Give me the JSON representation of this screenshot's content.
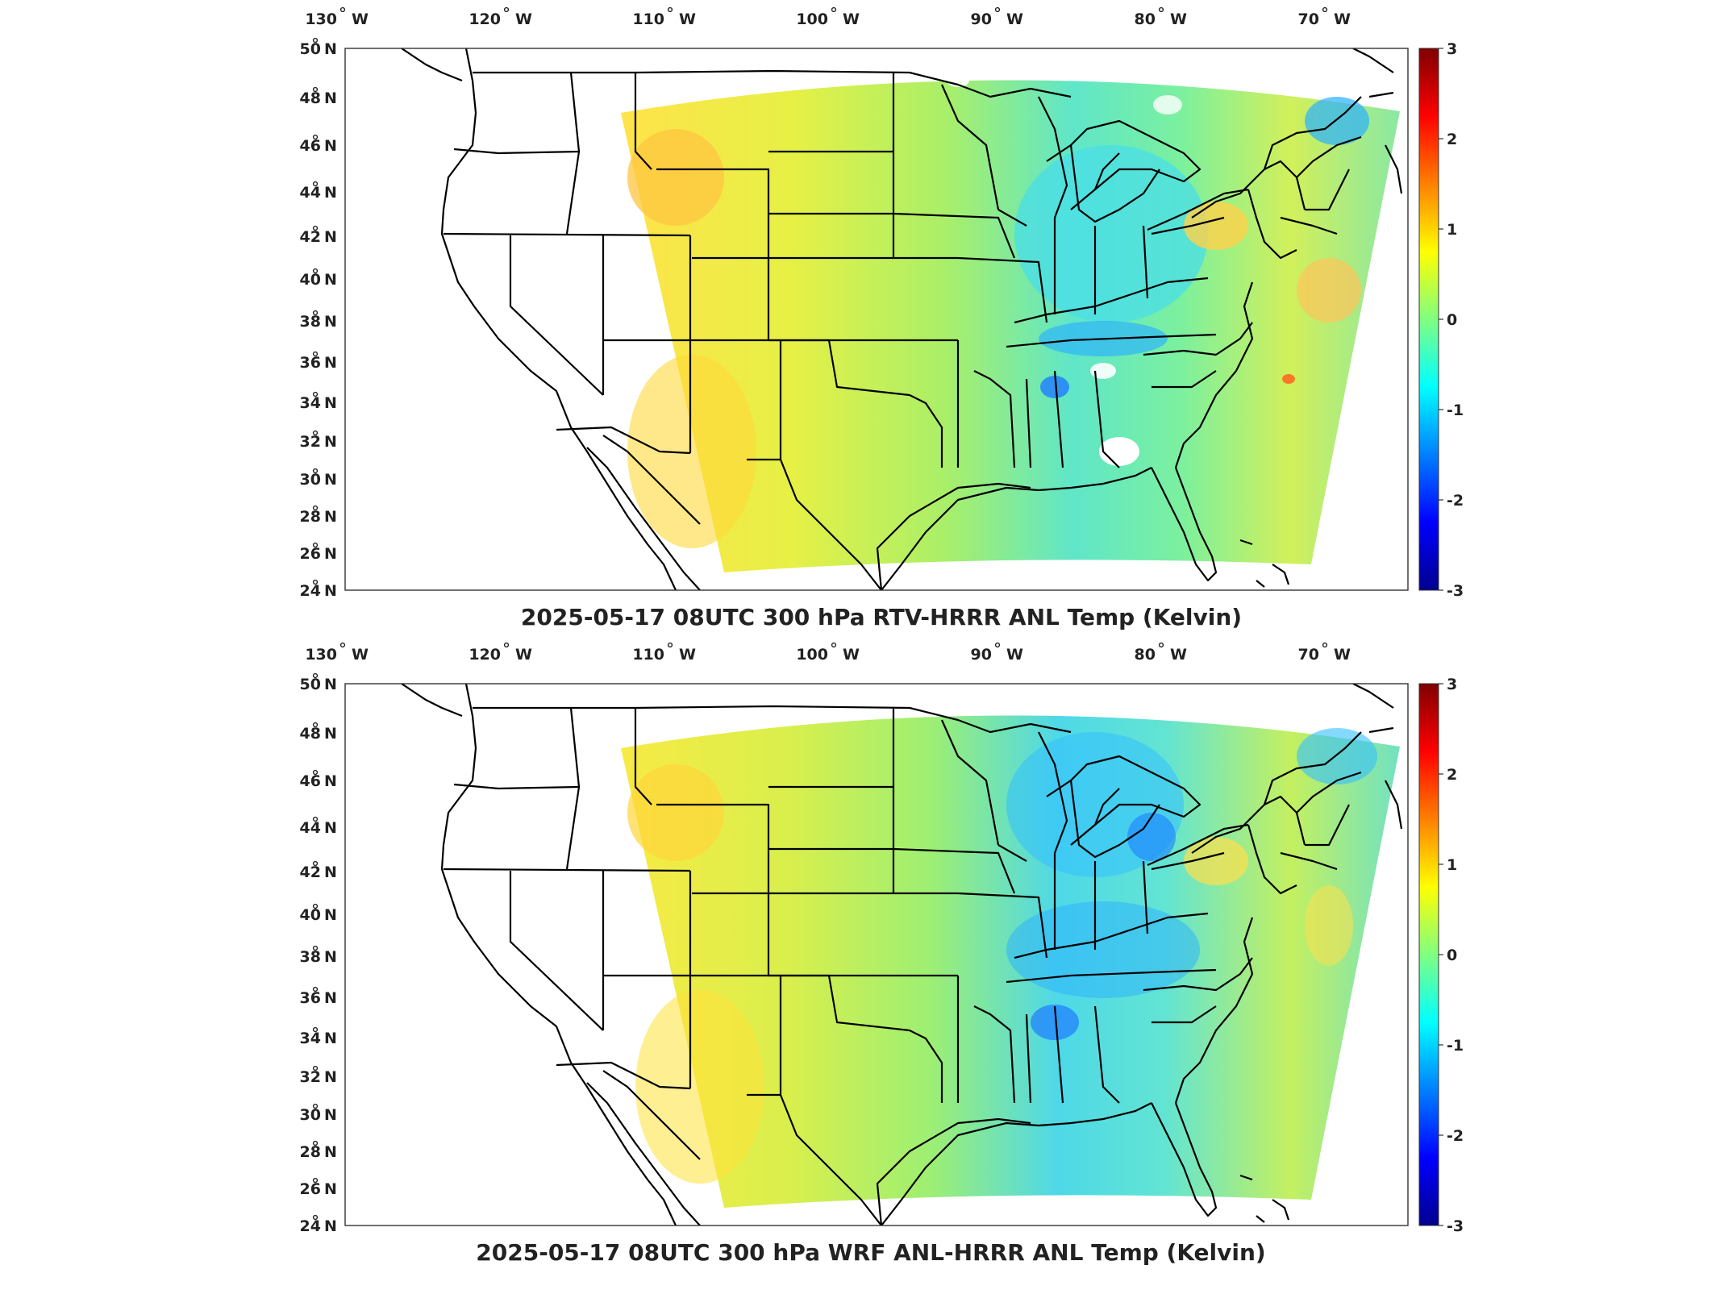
{
  "panels": [
    {
      "title": "2025-05-17 08UTC 300 hPa RTV-HRRR ANL Temp (Kelvin)",
      "lon_labels": [
        "130",
        "120",
        "110",
        "100",
        "90",
        "80",
        "70"
      ],
      "lon_hemi": "W",
      "lat_labels": [
        "50",
        "48",
        "46",
        "44",
        "42",
        "40",
        "38",
        "36",
        "34",
        "32",
        "30",
        "28",
        "26",
        "24"
      ],
      "lat_hemi": "N",
      "colorbar_ticks": [
        "3",
        "2",
        "1",
        "0",
        "-1",
        "-2",
        "-3"
      ]
    },
    {
      "title": "2025-05-17 08UTC 300 hPa WRF ANL-HRRR ANL Temp (Kelvin)",
      "lon_labels": [
        "130",
        "120",
        "110",
        "100",
        "90",
        "80",
        "70"
      ],
      "lon_hemi": "W",
      "lat_labels": [
        "50",
        "48",
        "46",
        "44",
        "42",
        "40",
        "38",
        "36",
        "34",
        "32",
        "30",
        "28",
        "26",
        "24"
      ],
      "lat_hemi": "N",
      "colorbar_ticks": [
        "3",
        "2",
        "1",
        "0",
        "-1",
        "-2",
        "-3"
      ]
    }
  ],
  "colormap": [
    "#00008f",
    "#0000ff",
    "#0080ff",
    "#00ffff",
    "#80ff80",
    "#ffff00",
    "#ff8000",
    "#ff0000",
    "#800000"
  ],
  "field_colors": {
    "west_warm": "#ffe93a",
    "central": "#b8f264",
    "east_cool": "#46e8e0",
    "cold_spot": "#1e9cff",
    "hot_spot": "#ff9a20"
  }
}
